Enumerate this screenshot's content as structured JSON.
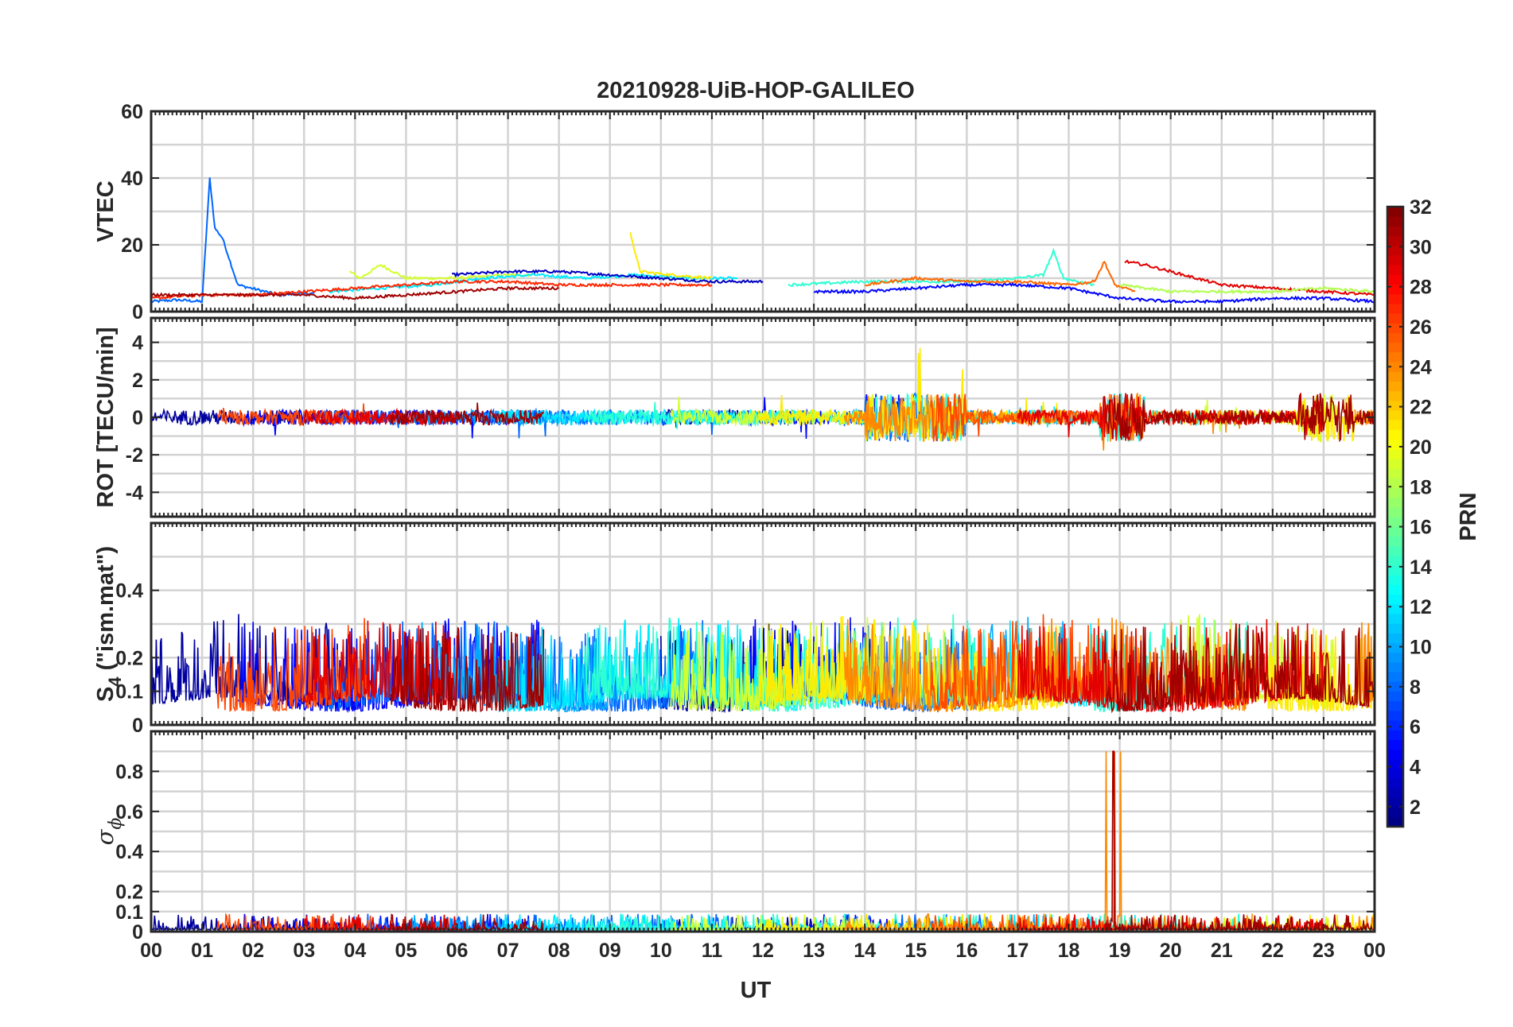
{
  "chart_data": {
    "type": "line",
    "title": "20210928-UiB-HOP-GALILEO",
    "xlabel": "UT",
    "x_tick_labels": [
      "00",
      "01",
      "02",
      "03",
      "04",
      "05",
      "06",
      "07",
      "08",
      "09",
      "10",
      "11",
      "12",
      "13",
      "14",
      "15",
      "16",
      "17",
      "18",
      "19",
      "20",
      "21",
      "22",
      "23",
      "00"
    ],
    "xlim_hours": [
      0,
      24
    ],
    "grid": true,
    "colorbar": {
      "label": "PRN",
      "range": [
        1,
        32
      ],
      "colormap": "jet",
      "tick_labels": [
        "2",
        "4",
        "6",
        "8",
        "10",
        "12",
        "14",
        "16",
        "18",
        "20",
        "22",
        "24",
        "26",
        "28",
        "30",
        "32"
      ]
    },
    "panels": [
      {
        "id": "vtec",
        "ylabel": "VTEC",
        "ylim": [
          0,
          60
        ],
        "y_tick_labels": [
          "0",
          "20",
          "40",
          "60"
        ],
        "series": [
          {
            "prn": 8,
            "values": [
              [
                0,
                3
              ],
              [
                0.5,
                3.5
              ],
              [
                1,
                3
              ],
              [
                1.15,
                40
              ],
              [
                1.25,
                25
              ],
              [
                1.4,
                22
              ],
              [
                1.7,
                8
              ],
              [
                2.5,
                5
              ],
              [
                3.2,
                5.5
              ]
            ]
          },
          {
            "prn": 19,
            "values": [
              [
                3.9,
                12
              ],
              [
                4.1,
                10
              ],
              [
                4.5,
                14
              ],
              [
                5,
                10
              ],
              [
                6,
                10
              ],
              [
                7,
                11
              ],
              [
                7.5,
                11
              ]
            ]
          },
          {
            "prn": 12,
            "values": [
              [
                3.5,
                6
              ],
              [
                4.5,
                7
              ],
              [
                5.5,
                8
              ],
              [
                6.5,
                10
              ],
              [
                7.5,
                11
              ],
              [
                8.5,
                10
              ],
              [
                9.5,
                11
              ],
              [
                10.5,
                10
              ],
              [
                11.5,
                10
              ]
            ]
          },
          {
            "prn": 3,
            "values": [
              [
                5.9,
                11
              ],
              [
                7,
                12
              ],
              [
                8,
                12
              ],
              [
                9,
                11
              ],
              [
                10,
                10
              ],
              [
                11,
                9
              ],
              [
                12,
                9
              ]
            ]
          },
          {
            "prn": 21,
            "values": [
              [
                9.4,
                24
              ],
              [
                9.5,
                17
              ],
              [
                9.6,
                12
              ],
              [
                10.2,
                11
              ],
              [
                11,
                10
              ]
            ]
          },
          {
            "prn": 27,
            "values": [
              [
                0,
                4
              ],
              [
                1,
                5
              ],
              [
                2,
                5
              ],
              [
                3,
                6
              ],
              [
                4,
                7
              ],
              [
                5,
                8
              ],
              [
                6,
                9
              ],
              [
                7,
                9
              ],
              [
                8,
                8
              ],
              [
                9,
                8
              ],
              [
                10,
                8
              ],
              [
                11,
                8
              ]
            ]
          },
          {
            "prn": 31,
            "values": [
              [
                0,
                5
              ],
              [
                1,
                5
              ],
              [
                2,
                5
              ],
              [
                3,
                5
              ],
              [
                4,
                4
              ],
              [
                5,
                5
              ],
              [
                6,
                6
              ],
              [
                7,
                7
              ],
              [
                8,
                7
              ]
            ]
          },
          {
            "prn": 14,
            "values": [
              [
                12.5,
                8
              ],
              [
                14,
                9
              ],
              [
                15,
                9
              ],
              [
                16,
                9
              ],
              [
                17,
                10
              ],
              [
                17.5,
                11
              ],
              [
                17.7,
                18
              ],
              [
                17.9,
                10
              ],
              [
                18.5,
                8
              ]
            ]
          },
          {
            "prn": 25,
            "values": [
              [
                14,
                8
              ],
              [
                15,
                10
              ],
              [
                16,
                9
              ],
              [
                17,
                9
              ],
              [
                18,
                8
              ],
              [
                18.5,
                9
              ],
              [
                18.7,
                15
              ],
              [
                18.9,
                8
              ],
              [
                19.3,
                6
              ]
            ]
          },
          {
            "prn": 29,
            "values": [
              [
                19.1,
                15
              ],
              [
                19.5,
                14
              ],
              [
                20,
                12
              ],
              [
                20.5,
                10
              ],
              [
                21,
                8
              ],
              [
                22,
                7
              ],
              [
                23,
                6
              ],
              [
                24,
                5
              ]
            ]
          },
          {
            "prn": 5,
            "values": [
              [
                13,
                6
              ],
              [
                14,
                6
              ],
              [
                15,
                7
              ],
              [
                16,
                8
              ],
              [
                17,
                8
              ],
              [
                18,
                7
              ],
              [
                19,
                4
              ],
              [
                20,
                3
              ],
              [
                21,
                3
              ],
              [
                22,
                4
              ],
              [
                23,
                4
              ],
              [
                24,
                3
              ]
            ]
          },
          {
            "prn": 18,
            "values": [
              [
                19,
                8
              ],
              [
                20,
                6
              ],
              [
                21,
                6
              ],
              [
                22,
                6
              ],
              [
                23,
                7
              ],
              [
                24,
                6
              ]
            ]
          }
        ]
      },
      {
        "id": "rot",
        "ylabel": "ROT [TECU/min]",
        "ylim": [
          -5.3,
          5.3
        ],
        "y_tick_labels": [
          "-4",
          "-2",
          "0",
          "2",
          "4"
        ]
      },
      {
        "id": "s4",
        "ylabel": "S",
        "ylabel_subscript": "4",
        "ylabel_suffix": " (\"ism.mat\")",
        "ylim": [
          0,
          0.6
        ],
        "y_tick_labels": [
          "0",
          "0.1",
          "0.2",
          "0.4"
        ]
      },
      {
        "id": "sigma",
        "ylabel": "σ",
        "ylabel_subscript": "ϕ",
        "ylim": [
          0,
          1
        ],
        "y_tick_labels": [
          "0",
          "0.1",
          "0.2",
          "0.4",
          "0.6",
          "0.8"
        ]
      }
    ]
  }
}
